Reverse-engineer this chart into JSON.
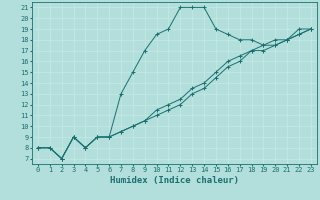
{
  "title": "",
  "xlabel": "Humidex (Indice chaleur)",
  "background_color": "#b2dfdb",
  "line_color": "#1a7070",
  "grid_color": "#c8e8e4",
  "xlim": [
    -0.5,
    23.5
  ],
  "ylim": [
    6.5,
    21.5
  ],
  "x_ticks": [
    0,
    1,
    2,
    3,
    4,
    5,
    6,
    7,
    8,
    9,
    10,
    11,
    12,
    13,
    14,
    15,
    16,
    17,
    18,
    19,
    20,
    21,
    22,
    23
  ],
  "y_ticks": [
    7,
    8,
    9,
    10,
    11,
    12,
    13,
    14,
    15,
    16,
    17,
    18,
    19,
    20,
    21
  ],
  "line1_x": [
    0,
    1,
    2,
    3,
    4,
    5,
    6,
    7,
    8,
    9,
    10,
    11,
    12,
    13,
    14,
    15,
    16,
    17,
    18,
    19,
    20,
    21,
    22,
    23
  ],
  "line1_y": [
    8.0,
    8.0,
    7.0,
    9.0,
    8.0,
    9.0,
    9.0,
    13.0,
    15.0,
    17.0,
    18.5,
    19.0,
    21.0,
    21.0,
    21.0,
    19.0,
    18.5,
    18.0,
    18.0,
    17.5,
    18.0,
    18.0,
    19.0,
    19.0
  ],
  "line2_x": [
    0,
    1,
    2,
    3,
    4,
    5,
    6,
    7,
    8,
    9,
    10,
    11,
    12,
    13,
    14,
    15,
    16,
    17,
    18,
    19,
    20,
    21,
    22,
    23
  ],
  "line2_y": [
    8.0,
    8.0,
    7.0,
    9.0,
    8.0,
    9.0,
    9.0,
    9.5,
    10.0,
    10.5,
    11.5,
    12.0,
    12.5,
    13.5,
    14.0,
    15.0,
    16.0,
    16.5,
    17.0,
    17.5,
    17.5,
    18.0,
    18.5,
    19.0
  ],
  "line3_x": [
    0,
    1,
    2,
    3,
    4,
    5,
    6,
    7,
    8,
    9,
    10,
    11,
    12,
    13,
    14,
    15,
    16,
    17,
    18,
    19,
    20,
    21,
    22,
    23
  ],
  "line3_y": [
    8.0,
    8.0,
    7.0,
    9.0,
    8.0,
    9.0,
    9.0,
    9.5,
    10.0,
    10.5,
    11.0,
    11.5,
    12.0,
    13.0,
    13.5,
    14.5,
    15.5,
    16.0,
    17.0,
    17.0,
    17.5,
    18.0,
    18.5,
    19.0
  ],
  "marker": "+",
  "marker_size": 3.0,
  "linewidth": 0.7,
  "tick_fontsize": 5.0,
  "xlabel_fontsize": 6.5
}
